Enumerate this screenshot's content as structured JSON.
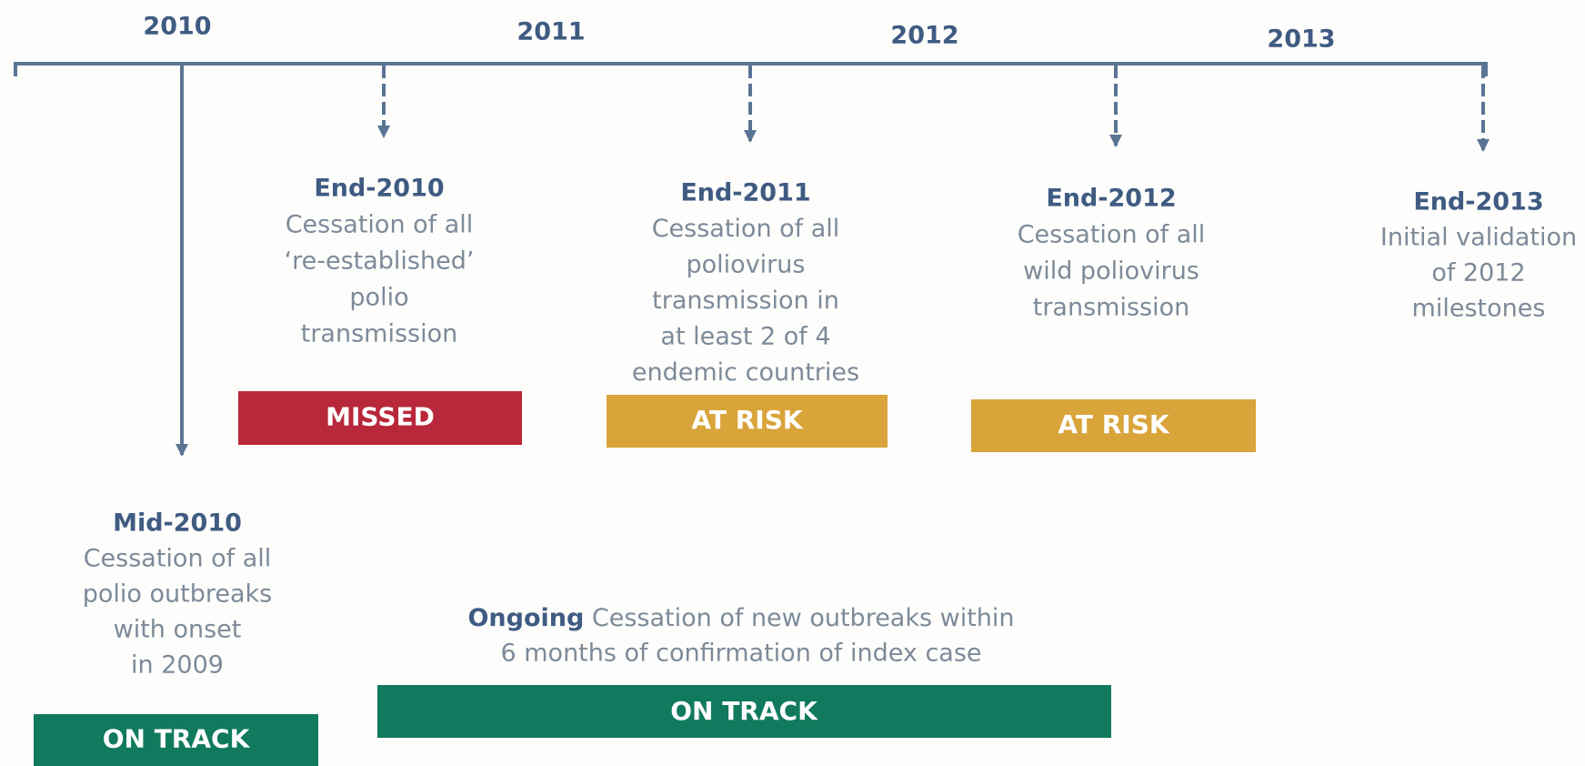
{
  "years": [
    "2010",
    "2011",
    "2012",
    "2013"
  ],
  "milestones": [
    {
      "title": "Mid-2010",
      "lines": [
        "Cessation of all",
        "polio outbreaks",
        "with onset",
        "in 2009"
      ],
      "status": "ON TRACK"
    },
    {
      "title": "End-2010",
      "lines": [
        "Cessation of all",
        "‘re-established’",
        "polio",
        "transmission"
      ],
      "status": "MISSED"
    },
    {
      "title": "End-2011",
      "lines": [
        "Cessation of all",
        "poliovirus",
        "transmission in",
        "at least 2 of 4",
        "endemic countries"
      ],
      "status": "AT RISK"
    },
    {
      "title": "End-2012",
      "lines": [
        "Cessation of all",
        "wild poliovirus",
        "transmission"
      ],
      "status": "AT RISK"
    },
    {
      "title": "End-2013",
      "lines": [
        "Initial validation",
        "of 2012",
        "milestones"
      ]
    }
  ],
  "ongoing": {
    "label": "Ongoing",
    "lines": [
      "Cessation of new outbreaks within",
      "6 months of confirmation of index case"
    ],
    "status": "ON TRACK"
  }
}
